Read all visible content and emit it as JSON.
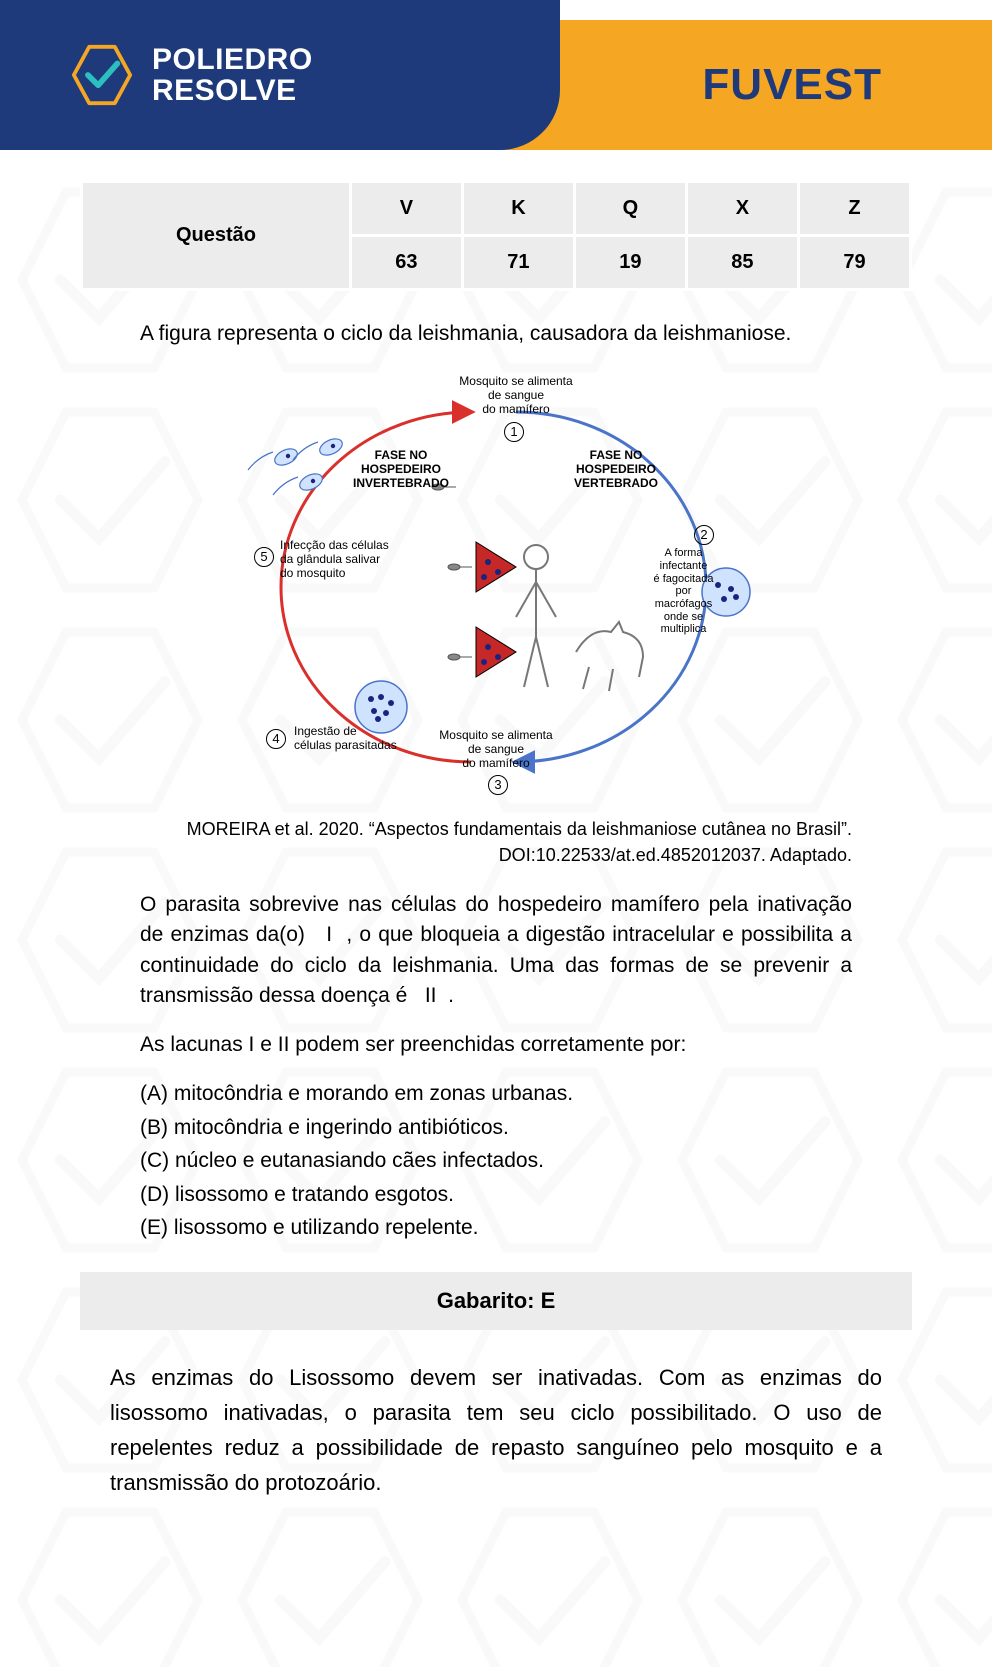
{
  "header": {
    "brand_line1": "POLIEDRO",
    "brand_line2": "RESOLVE",
    "exam": "FUVEST",
    "colors": {
      "blue": "#1e3a7b",
      "orange": "#f5a623",
      "teal": "#2bbfbf"
    }
  },
  "question_table": {
    "row_label": "Questão",
    "columns": [
      "V",
      "K",
      "Q",
      "X",
      "Z"
    ],
    "values": [
      "63",
      "71",
      "19",
      "85",
      "79"
    ]
  },
  "intro": "A figura representa o ciclo da leishmania, causadora da leishmaniose.",
  "figure": {
    "type": "cycle-diagram",
    "arrow_colors": {
      "invertebrate": "#d9302c",
      "vertebrate": "#4a74c9"
    },
    "phase_invert": "FASE NO\nHOSPEDEIRO\nINVERTEBRADO",
    "phase_vert": "FASE NO\nHOSPEDEIRO\nVERTEBRADO",
    "nodes": [
      {
        "n": "1",
        "label": "Mosquito se alimenta\nde sangue\ndo mamífero"
      },
      {
        "n": "2",
        "label": "A forma\ninfectante\né fagocitada\npor\nmacrófagos\nonde se\nmultiplica"
      },
      {
        "n": "3",
        "label": "Mosquito se alimenta\nde sangue\ndo mamífero"
      },
      {
        "n": "4",
        "label": "Ingestão de\ncélulas parasitadas"
      },
      {
        "n": "5",
        "label": "Infecção das células\nda glândula salivar\ndo mosquito"
      }
    ]
  },
  "source": "MOREIRA et al. 2020. “Aspectos fundamentais da leishmaniose cutânea no Brasil”. DOI:10.22533/at.ed.4852012037. Adaptado.",
  "stem1": "O parasita sobrevive nas células do hospedeiro mamífero pela inativação de enzimas da(o)   I  , o que bloqueia a digestão intracelular e possibilita a continuidade do ciclo da leishmania. Uma das formas de se prevenir a transmissão dessa doença é   II  .",
  "stem2": "As lacunas I e II podem ser preenchidas corretamente por:",
  "alternatives": [
    "(A) mitocôndria e morando em zonas urbanas.",
    "(B) mitocôndria e ingerindo antibióticos.",
    "(C) núcleo e eutanasiando cães infectados.",
    "(D) lisossomo e tratando esgotos.",
    "(E) lisossomo e utilizando repelente."
  ],
  "gabarito": "Gabarito: E",
  "explanation": "As enzimas do Lisossomo devem ser inativadas. Com as enzimas do lisossomo inativadas, o parasita tem seu ciclo possibilitado. O uso de repelentes reduz a possibilidade de repasto sanguíneo pelo mosquito e a transmissão do protozoário."
}
